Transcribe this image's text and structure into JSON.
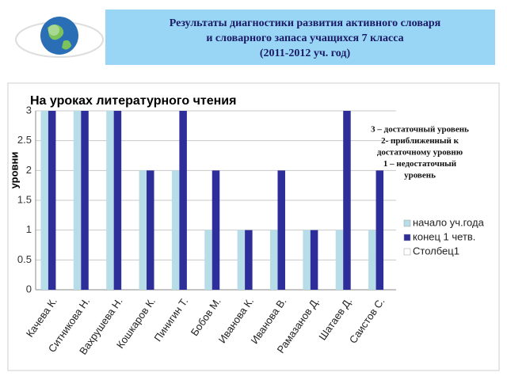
{
  "slide_title": [
    "Результаты диагностики развития активного словаря",
    "и словарного запаса учащихся 7 класса",
    "(2011-2012 уч. год)"
  ],
  "chart_data": {
    "type": "bar",
    "title": "На уроках литературного чтения",
    "y_label": "уровни",
    "categories": [
      "Качева К.",
      "Ситникова Н.",
      "Вахрушева Н.",
      "Кошкаров К.",
      "Пинигин Т.",
      "Бобов М.",
      "Иванова К.",
      "Иванова В.",
      "Рамазанов Д.",
      "Шатаев Д.",
      "Саистов С."
    ],
    "series": [
      {
        "name": "начало уч.года",
        "color": "#b7dde8",
        "values": [
          3,
          3,
          3,
          2,
          2,
          1,
          1,
          1,
          1,
          1,
          1
        ]
      },
      {
        "name": "конец 1 четв.",
        "color": "#2e2e9a",
        "values": [
          3,
          3,
          3,
          2,
          3,
          2,
          1,
          2,
          1,
          3,
          2
        ]
      },
      {
        "name": "Столбец1",
        "color": "#ffffff",
        "values": [
          null,
          null,
          null,
          null,
          null,
          null,
          null,
          null,
          null,
          null,
          null
        ]
      }
    ],
    "ylim": [
      0,
      3
    ],
    "yticks": [
      0,
      0.5,
      1,
      1.5,
      2,
      2.5,
      3
    ],
    "grid": true,
    "legend": "right",
    "annotation": [
      "3 – достаточный уровень",
      "2- приближенный к",
      "достаточному уровню",
      "1 – недостаточный",
      "уровень"
    ]
  }
}
